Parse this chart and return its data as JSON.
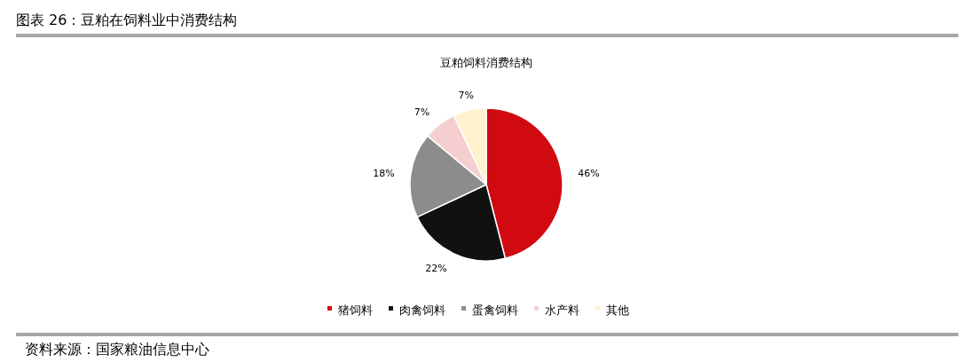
{
  "chart_data": {
    "type": "pie",
    "title": "图表 26：豆粕在饲料业中消费结构",
    "subtitle": "豆粕饲料消费结构",
    "categories": [
      "猪饲料",
      "肉禽饲料",
      "蛋禽饲料",
      "水产料",
      "其他"
    ],
    "values": [
      46,
      22,
      18,
      7,
      7
    ],
    "colors": [
      "#d10a11",
      "#111111",
      "#8c8c8c",
      "#f5cfd0",
      "#fff2cc"
    ],
    "value_labels": [
      "46%",
      "22%",
      "18%",
      "7%",
      "7%"
    ],
    "legend": "bottom",
    "annotations": [
      "资料来源：国家粮油信息中心"
    ]
  }
}
